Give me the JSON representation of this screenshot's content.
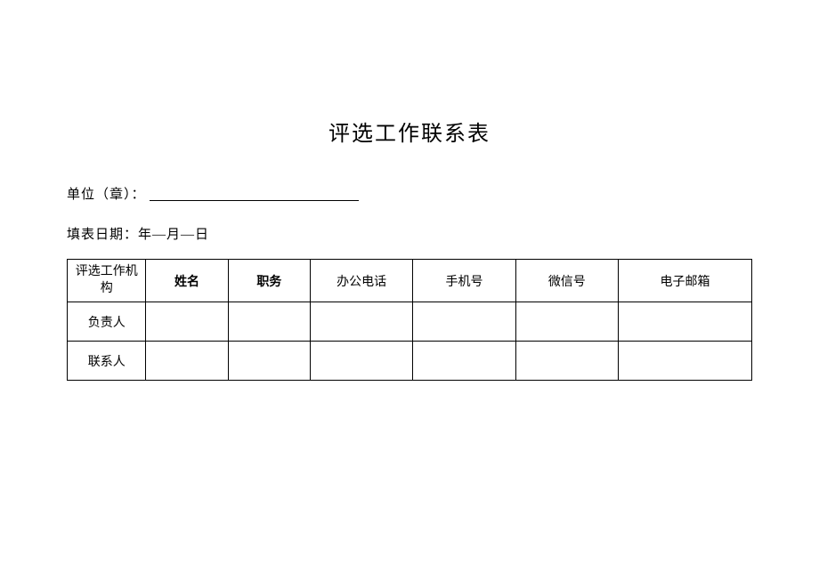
{
  "title": "评选工作联系表",
  "unit_label": "单位（章）：",
  "date_label": "填表日期：年—月—日",
  "table": {
    "columns": [
      {
        "label_line1": "评选工作机",
        "label_line2": "构",
        "bold": false
      },
      {
        "label": "姓名",
        "bold": true
      },
      {
        "label": "职务",
        "bold": true
      },
      {
        "label": "办公电话",
        "bold": false
      },
      {
        "label": "手机号",
        "bold": false
      },
      {
        "label": "微信号",
        "bold": false
      },
      {
        "label": "电子邮箱",
        "bold": false
      }
    ],
    "rows": [
      {
        "label": "负责人",
        "cells": [
          "",
          "",
          "",
          "",
          "",
          ""
        ]
      },
      {
        "label": "联系人",
        "cells": [
          "",
          "",
          "",
          "",
          "",
          ""
        ]
      }
    ]
  },
  "styling": {
    "background_color": "#ffffff",
    "border_color": "#000000",
    "title_fontsize": 24,
    "body_fontsize": 15,
    "table_fontsize": 14,
    "header_row_height": 48,
    "data_row_height": 44,
    "column_widths_pct": [
      11.5,
      12,
      12,
      15,
      15,
      15,
      19.5
    ]
  }
}
